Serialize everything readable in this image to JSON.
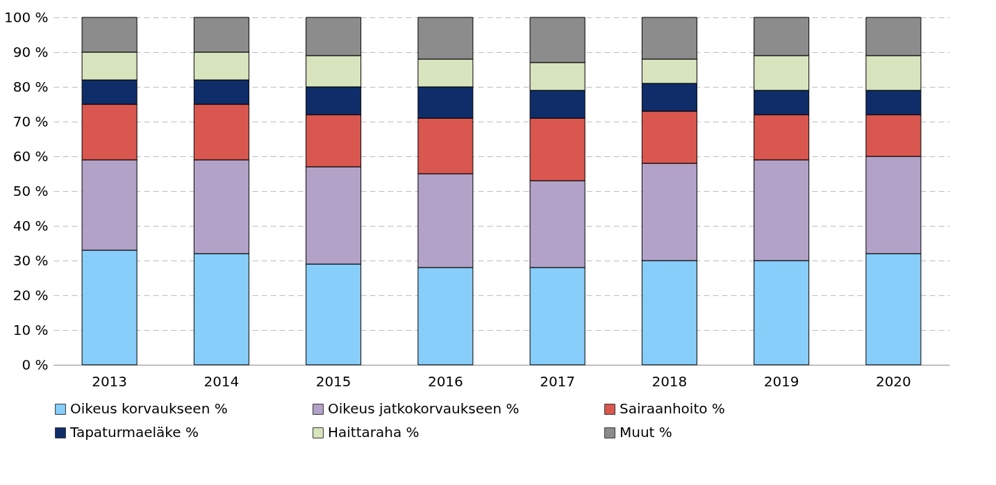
{
  "chart_data": {
    "type": "bar",
    "stacked": true,
    "categories": [
      "2013",
      "2014",
      "2015",
      "2016",
      "2017",
      "2018",
      "2019",
      "2020"
    ],
    "series": [
      {
        "name": "Oikeus korvaukseen %",
        "color": "#87cefa",
        "values": [
          33,
          32,
          29,
          28,
          28,
          30,
          30,
          32
        ]
      },
      {
        "name": "Oikeus jatkokorvaukseen %",
        "color": "#b3a2c7",
        "values": [
          26,
          27,
          28,
          27,
          25,
          28,
          29,
          28
        ]
      },
      {
        "name": "Sairaanhoito %",
        "color": "#d9574f",
        "values": [
          16,
          16,
          15,
          16,
          18,
          15,
          13,
          12
        ]
      },
      {
        "name": "Tapaturmaeläke %",
        "color": "#0f2d69",
        "values": [
          7,
          7,
          8,
          9,
          8,
          8,
          7,
          7
        ]
      },
      {
        "name": "Haittaraha %",
        "color": "#d7e4bd",
        "values": [
          8,
          8,
          9,
          8,
          8,
          7,
          10,
          10
        ]
      },
      {
        "name": "Muut %",
        "color": "#8c8c8c",
        "values": [
          10,
          10,
          11,
          12,
          13,
          12,
          11,
          11
        ]
      }
    ],
    "ylim": [
      0,
      100
    ],
    "yticks": [
      {
        "value": 0,
        "label": "0 %"
      },
      {
        "value": 10,
        "label": "10 %"
      },
      {
        "value": 20,
        "label": "20 %"
      },
      {
        "value": 30,
        "label": "30 %"
      },
      {
        "value": 40,
        "label": "40 %"
      },
      {
        "value": 50,
        "label": "50 %"
      },
      {
        "value": 60,
        "label": "60 %"
      },
      {
        "value": 70,
        "label": "70 %"
      },
      {
        "value": 80,
        "label": "80 %"
      },
      {
        "value": 90,
        "label": "90 %"
      },
      {
        "value": 100,
        "label": "100 %"
      }
    ],
    "grid": "y",
    "legend": "bottom"
  }
}
